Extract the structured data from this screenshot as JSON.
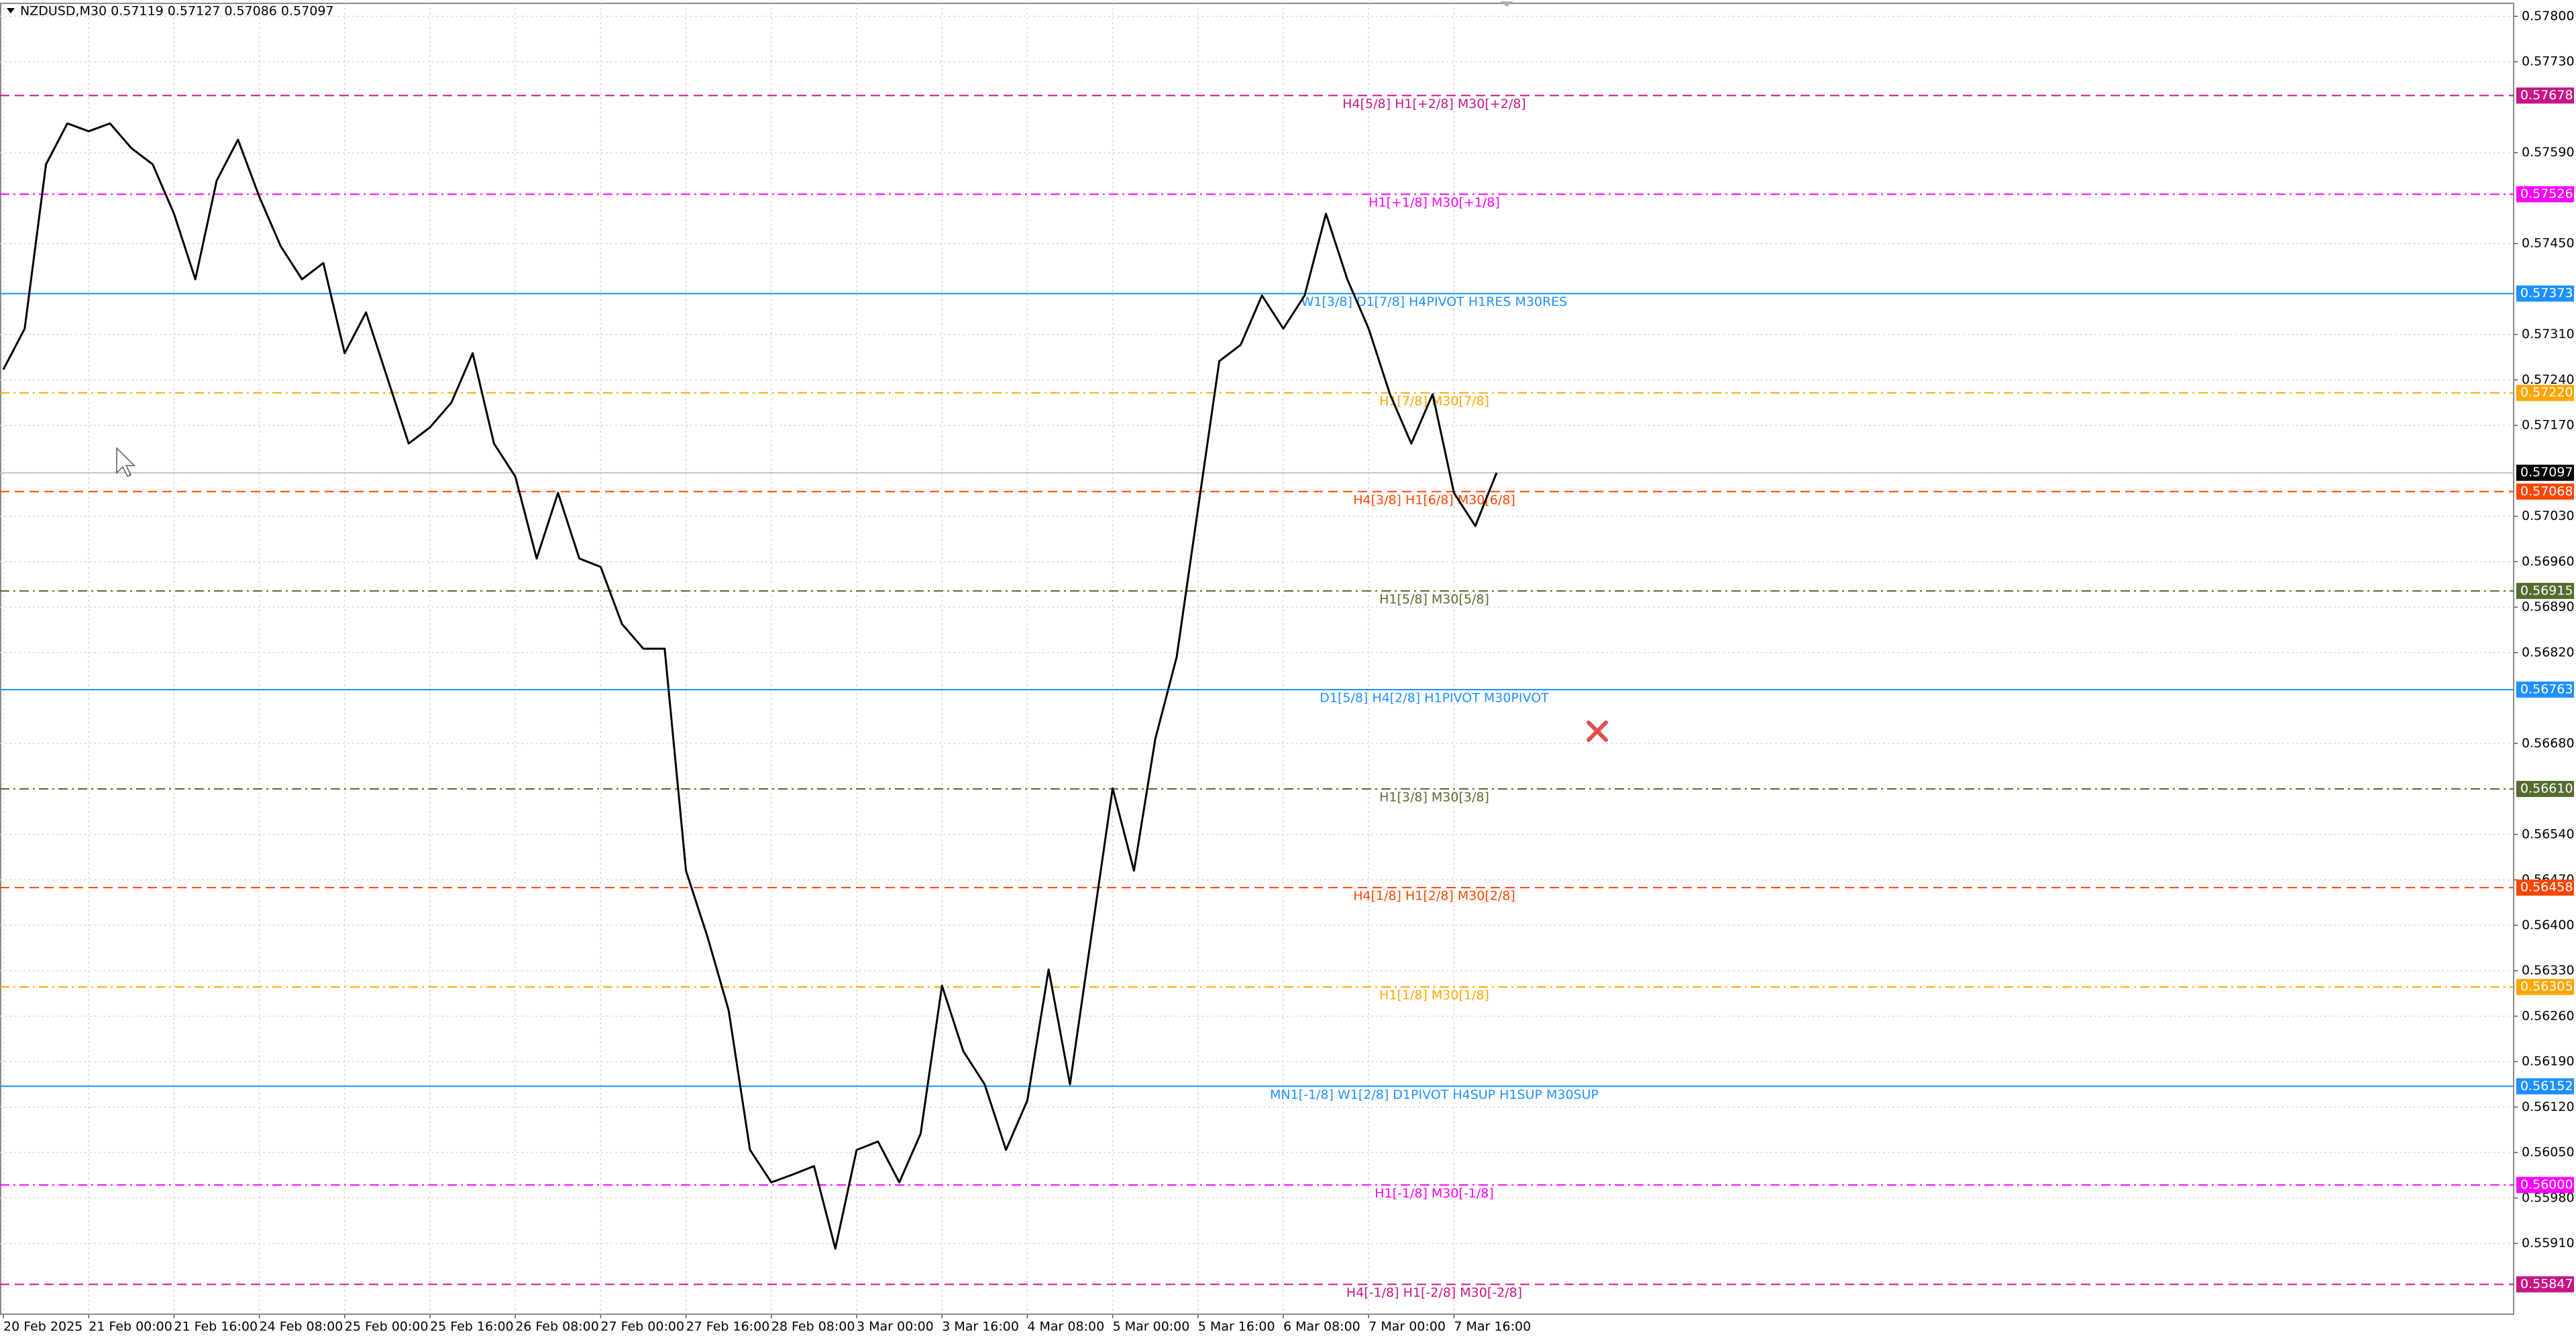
{
  "chart_data": {
    "type": "line",
    "title": "NZDUSD,M30  0.57119 0.57127 0.57086 0.57097",
    "categories": [
      "20 Feb 2025",
      null,
      null,
      null,
      "21 Feb 00:00",
      null,
      null,
      null,
      "21 Feb 16:00",
      null,
      null,
      null,
      "24 Feb 08:00",
      null,
      null,
      null,
      "25 Feb 00:00",
      null,
      null,
      null,
      "25 Feb 16:00",
      null,
      null,
      null,
      "26 Feb 08:00",
      null,
      null,
      null,
      "27 Feb 00:00",
      null,
      null,
      null,
      "27 Feb 16:00",
      null,
      null,
      null,
      "28 Feb 08:00",
      null,
      null,
      null,
      "3 Mar 00:00",
      null,
      null,
      null,
      "3 Mar 16:00",
      null,
      null,
      null,
      "4 Mar 08:00",
      null,
      null,
      null,
      "5 Mar 00:00",
      null,
      null,
      null,
      "5 Mar 16:00",
      null,
      null,
      null,
      "6 Mar 08:00",
      null,
      null,
      null,
      "7 Mar 00:00",
      null,
      null,
      null,
      "7 Mar 16:00",
      null,
      null
    ],
    "values": [
      0.57256,
      0.57319,
      0.57572,
      0.57635,
      0.57623,
      0.57635,
      0.57597,
      0.57572,
      0.57496,
      0.57395,
      0.57547,
      0.5761,
      0.57522,
      0.57446,
      0.57395,
      0.5742,
      0.57281,
      0.57344,
      0.57243,
      0.57142,
      0.57167,
      0.57205,
      0.57281,
      0.57142,
      0.57091,
      0.56965,
      0.57066,
      0.56965,
      0.56952,
      0.56864,
      0.56826,
      0.56826,
      0.56484,
      0.56383,
      0.56269,
      0.56054,
      0.56004,
      0.56016,
      0.56029,
      0.55902,
      0.56054,
      0.56067,
      0.56004,
      0.56079,
      0.56307,
      0.56206,
      0.56155,
      0.56054,
      0.5613,
      0.56332,
      0.56155,
      0.56383,
      0.56611,
      0.56484,
      0.56687,
      0.56813,
      0.57041,
      0.57269,
      0.57294,
      0.5737,
      0.57319,
      0.5737,
      0.57496,
      0.57395,
      0.57319,
      0.57218,
      0.57142,
      0.57218,
      0.57066,
      0.57015,
      0.57097
    ],
    "color": "#000000",
    "ylim": [
      0.55801,
      0.5782
    ],
    "yticks": [
      {
        "value": 0.578,
        "label": "0.57800"
      },
      {
        "value": 0.5773,
        "label": "0.57730"
      },
      {
        "value": 0.5759,
        "label": "0.57590"
      },
      {
        "value": 0.5745,
        "label": "0.57450"
      },
      {
        "value": 0.5731,
        "label": "0.57310"
      },
      {
        "value": 0.5724,
        "label": "0.57240"
      },
      {
        "value": 0.5717,
        "label": "0.57170"
      },
      {
        "value": 0.5703,
        "label": "0.57030"
      },
      {
        "value": 0.5696,
        "label": "0.56960"
      },
      {
        "value": 0.5689,
        "label": "0.56890"
      },
      {
        "value": 0.5682,
        "label": "0.56820"
      },
      {
        "value": 0.5668,
        "label": "0.56680"
      },
      {
        "value": 0.5654,
        "label": "0.56540"
      },
      {
        "value": 0.5647,
        "label": "0.56470"
      },
      {
        "value": 0.564,
        "label": "0.56400"
      },
      {
        "value": 0.5633,
        "label": "0.56330"
      },
      {
        "value": 0.5626,
        "label": "0.56260"
      },
      {
        "value": 0.5619,
        "label": "0.56190"
      },
      {
        "value": 0.5612,
        "label": "0.56120"
      },
      {
        "value": 0.5605,
        "label": "0.56050"
      },
      {
        "value": 0.5598,
        "label": "0.55980"
      },
      {
        "value": 0.5591,
        "label": "0.55910"
      }
    ],
    "grid": true,
    "current_price": {
      "value": 0.57097,
      "label": "0.57097"
    },
    "levels": [
      {
        "price": {
          "value": 0.57678,
          "label": "0.57678"
        },
        "text": "H4[5/8] H1[+2/8] M30[+2/8]",
        "color": "#c71585",
        "style": "dashed"
      },
      {
        "price": {
          "value": 0.57526,
          "label": "0.57526"
        },
        "text": "H1[+1/8] M30[+1/8]",
        "color": "#ff00ff",
        "style": "dashdot"
      },
      {
        "price": {
          "value": 0.57373,
          "label": "0.57373"
        },
        "text": "W1[3/8] D1[7/8] H4PIVOT H1RES M30RES",
        "color": "#1e90ff",
        "style": "solid"
      },
      {
        "price": {
          "value": 0.5722,
          "label": "0.57220"
        },
        "text": "H1[7/8] M30[7/8]",
        "color": "#ffa500",
        "style": "dashdot"
      },
      {
        "price": {
          "value": 0.57068,
          "label": "0.57068"
        },
        "text": "H4[3/8] H1[6/8] M30[6/8]",
        "color": "#ff4500",
        "style": "dashed"
      },
      {
        "price": {
          "value": 0.56915,
          "label": "0.56915"
        },
        "text": "H1[5/8] M30[5/8]",
        "color": "#556b2f",
        "style": "dashdot"
      },
      {
        "price": {
          "value": 0.56763,
          "label": "0.56763"
        },
        "text": "D1[5/8] H4[2/8] H1PIVOT M30PIVOT",
        "color": "#1e90ff",
        "style": "solid"
      },
      {
        "price": {
          "value": 0.5661,
          "label": "0.56610"
        },
        "text": "H1[3/8] M30[3/8]",
        "color": "#556b2f",
        "style": "dashdot"
      },
      {
        "price": {
          "value": 0.56458,
          "label": "0.56458"
        },
        "text": "H4[1/8] H1[2/8] M30[2/8]",
        "color": "#ff4500",
        "style": "dashed"
      },
      {
        "price": {
          "value": 0.56305,
          "label": "0.56305"
        },
        "text": "H1[1/8] M30[1/8]",
        "color": "#ffa500",
        "style": "dashdot"
      },
      {
        "price": {
          "value": 0.56152,
          "label": "0.56152"
        },
        "text": "MN1[-1/8] W1[2/8] D1PIVOT H4SUP H1SUP M30SUP",
        "color": "#1e90ff",
        "style": "solid"
      },
      {
        "price": {
          "value": 0.56,
          "label": "0.56000"
        },
        "text": "H1[-1/8] M30[-1/8]",
        "color": "#ff00ff",
        "style": "dashdot"
      },
      {
        "price": {
          "value": 0.55847,
          "label": "0.55847"
        },
        "text": "H4[-1/8] H1[-2/8] M30[-2/8]",
        "color": "#c71585",
        "style": "dashed"
      }
    ]
  }
}
